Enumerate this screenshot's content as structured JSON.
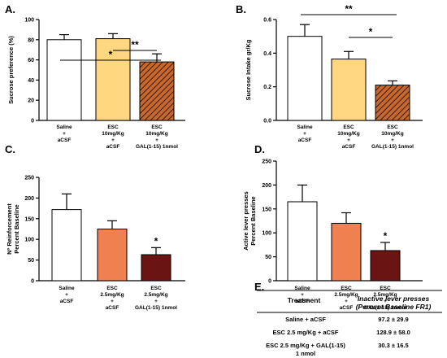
{
  "chart_data": [
    {
      "type": "bar",
      "panel": "A.",
      "ylabel": "Sucrose preference (%)",
      "ylim": [
        0,
        100
      ],
      "yticks": [
        "0",
        "20",
        "40",
        "60",
        "80",
        "100"
      ],
      "categories": [
        [
          "Saline",
          "+",
          "aCSF"
        ],
        [
          "ESC",
          "10mg/Kg",
          "+",
          "aCSF"
        ],
        [
          "ESC",
          "10mg/Kg",
          "+",
          "GAL(1-15) 1nmol"
        ]
      ],
      "values": [
        80,
        81,
        58
      ],
      "errors": [
        5,
        5,
        8
      ],
      "colors": [
        "#ffffff",
        "#ffd780",
        "#c7692e"
      ],
      "hatched": [
        false,
        false,
        true
      ],
      "significance": [
        {
          "from": 0,
          "to": 2,
          "label": "*"
        },
        {
          "from": 1,
          "to": 2,
          "label": "**"
        }
      ]
    },
    {
      "type": "bar",
      "panel": "B.",
      "ylabel": "Sucrose Intake gr/Kg",
      "ylim": [
        0,
        0.6
      ],
      "yticks": [
        "0.0",
        "0.2",
        "0.4",
        "0.6"
      ],
      "categories": [
        [
          "Saline",
          "+",
          "aCSF"
        ],
        [
          "ESC",
          "10mg/Kg",
          "+",
          "aCSF"
        ],
        [
          "ESC",
          "10mg/Kg",
          "+",
          "GAL(1-15) 1nmol"
        ]
      ],
      "values": [
        0.5,
        0.365,
        0.21
      ],
      "errors": [
        0.07,
        0.045,
        0.025
      ],
      "colors": [
        "#ffffff",
        "#ffd780",
        "#c7692e"
      ],
      "hatched": [
        false,
        false,
        true
      ],
      "significance": [
        {
          "from": 0,
          "to": 2,
          "label": "**"
        },
        {
          "from": 1,
          "to": 2,
          "label": "*"
        }
      ]
    },
    {
      "type": "bar",
      "panel": "C.",
      "ylabel": [
        "Nº Reinforcement",
        "Percent Baseline"
      ],
      "ylim": [
        0,
        250
      ],
      "yticks": [
        "0",
        "50",
        "100",
        "150",
        "200",
        "250"
      ],
      "categories": [
        [
          "Saline",
          "+",
          "aCSF"
        ],
        [
          "ESC",
          "2.5mg/Kg",
          "+",
          "aCSF"
        ],
        [
          "ESC",
          "2.5mg/Kg",
          "+",
          "GAL(1-15) 1nmol"
        ]
      ],
      "values": [
        172,
        125,
        63
      ],
      "errors": [
        38,
        20,
        17
      ],
      "colors": [
        "#ffffff",
        "#f08050",
        "#6b1414"
      ],
      "hatched": [
        false,
        false,
        false
      ],
      "stars": [
        "",
        "",
        "*"
      ]
    },
    {
      "type": "bar",
      "panel": "D.",
      "ylabel": [
        "Active lever presses",
        "Percent Baseline"
      ],
      "ylim": [
        0,
        250
      ],
      "yticks": [
        "0",
        "50",
        "100",
        "150",
        "200",
        "250"
      ],
      "categories": [
        [
          "Saline",
          "+",
          "aCSF"
        ],
        [
          "ESC",
          "2.5mg/Kg",
          "+",
          "aCSF"
        ],
        [
          "ESC",
          "2.5mg/Kg",
          "+",
          "GAL(1-15) 1nmol"
        ]
      ],
      "values": [
        165,
        120,
        63
      ],
      "errors": [
        35,
        22,
        17
      ],
      "colors": [
        "#ffffff",
        "#f08050",
        "#6b1414"
      ],
      "hatched": [
        false,
        false,
        false
      ],
      "stars": [
        "",
        "",
        "*"
      ]
    }
  ],
  "table": {
    "panel": "E.",
    "header_treatment": "Treatment",
    "header_value": [
      "Inactive lever presses",
      "(Percent Baseline FR1)"
    ],
    "rows": [
      {
        "treatment": [
          "Saline + aCSF"
        ],
        "value": "97.2 ± 29.9"
      },
      {
        "treatment": [
          "ESC 2.5 mg/Kg + aCSF"
        ],
        "value": "128.9 ± 58.0"
      },
      {
        "treatment": [
          "ESC 2.5 mg/Kg + GAL(1-15)",
          "1 nmol"
        ],
        "value": "30.3 ± 16.5"
      }
    ]
  }
}
